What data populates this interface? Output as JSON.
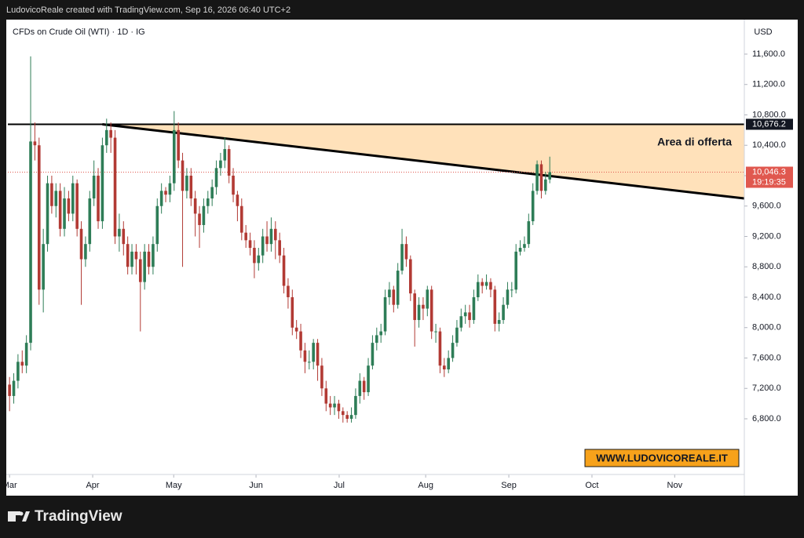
{
  "header": {
    "credit": "LudovicoReale created with TradingView.com, Sep 16, 2026 06:40 UTC+2",
    "brand": "TradingView"
  },
  "chart_data": {
    "type": "candlestick",
    "title": "CFDs on Crude Oil (WTI) · 1D · IG",
    "y_unit": "USD",
    "annotation": "Area di offerta",
    "watermark": "WWW.LUDOVICOREALE.IT",
    "up_color": "#2e7d57",
    "down_color": "#b23a34",
    "zone_color": "#ffe1ba",
    "open": [
      7250,
      7100,
      7300,
      7550,
      7500,
      7800,
      10450,
      10400,
      8500,
      9100,
      9900,
      9600,
      9800,
      9300,
      9700,
      9500,
      9900,
      9300,
      8900,
      9100,
      9700,
      10000,
      9400,
      10400,
      10600,
      10500,
      9200,
      9300,
      9100,
      8800,
      9000,
      8900,
      8600,
      9000,
      8800,
      9100,
      9600,
      9800,
      9750,
      9900,
      10600,
      10200,
      9800,
      10000,
      9700,
      9500,
      9350,
      9600,
      9700,
      9850,
      10100,
      10200,
      10350,
      10000,
      9750,
      9600,
      9250,
      9150,
      9050,
      8850,
      8950,
      9200,
      9100,
      9300,
      9150,
      8950,
      8550,
      8400,
      8000,
      7950,
      7700,
      7550,
      7550,
      7800,
      7500,
      7200,
      7000,
      6950,
      7000,
      6900,
      6850,
      6800,
      6850,
      7100,
      7300,
      7150,
      7500,
      7800,
      7900,
      7950,
      8400,
      8500,
      8300,
      8750,
      9100,
      8900,
      8450,
      8100,
      8300,
      8250,
      8500,
      7950,
      7950,
      7500,
      7450,
      7600,
      7800,
      8000,
      8150,
      8200,
      8100,
      8400,
      8600,
      8550,
      8600,
      8500,
      8050,
      8100,
      8300,
      8500,
      8500,
      9000,
      9050,
      9100,
      9400,
      9800,
      10150,
      9800,
      9950
    ],
    "high": [
      7350,
      7400,
      7650,
      7700,
      7900,
      11570,
      10700,
      10500,
      9300,
      10000,
      10000,
      9900,
      9900,
      9850,
      9800,
      10000,
      9950,
      9400,
      9200,
      9800,
      10200,
      10100,
      10500,
      10750,
      10700,
      10600,
      9500,
      9400,
      9200,
      9100,
      9100,
      9000,
      9100,
      9100,
      9200,
      9700,
      9900,
      9850,
      10000,
      10850,
      10700,
      10300,
      10100,
      10100,
      9800,
      9600,
      9700,
      9800,
      9950,
      10200,
      10300,
      10500,
      10400,
      10100,
      9800,
      9700,
      9350,
      9250,
      9150,
      9050,
      9300,
      9400,
      9450,
      9400,
      9250,
      9050,
      8650,
      8500,
      8100,
      8050,
      7800,
      7700,
      7850,
      7850,
      7600,
      7300,
      7100,
      7100,
      7050,
      6950,
      6900,
      6950,
      7200,
      7400,
      7350,
      7600,
      7900,
      8000,
      8050,
      8500,
      8600,
      8550,
      8850,
      9300,
      9200,
      8950,
      8500,
      8400,
      8400,
      8550,
      8550,
      8050,
      8000,
      7600,
      7700,
      7900,
      8100,
      8250,
      8300,
      8300,
      8500,
      8700,
      8650,
      8700,
      8650,
      8550,
      8200,
      8400,
      8600,
      8600,
      9100,
      9150,
      9200,
      9500,
      9900,
      10200,
      10200,
      10050,
      10250
    ],
    "low": [
      6900,
      7000,
      7200,
      7400,
      7400,
      7700,
      10200,
      8300,
      8200,
      9000,
      9500,
      9450,
      9200,
      9200,
      9400,
      9400,
      9200,
      8300,
      8800,
      9000,
      9600,
      9300,
      9300,
      10300,
      10300,
      9100,
      9000,
      8950,
      8700,
      8700,
      8700,
      7950,
      8500,
      8700,
      8700,
      9000,
      9500,
      9650,
      9650,
      9800,
      10100,
      8800,
      9700,
      9600,
      9200,
      9050,
      9250,
      9500,
      9600,
      9750,
      10000,
      10100,
      9900,
      9650,
      9400,
      9150,
      9050,
      8950,
      8650,
      8750,
      8850,
      9000,
      9000,
      8900,
      8850,
      8450,
      8250,
      7900,
      7850,
      7600,
      7400,
      7450,
      7450,
      7300,
      7100,
      6900,
      6850,
      6850,
      6800,
      6750,
      6750,
      6750,
      6800,
      7000,
      7050,
      7100,
      7450,
      7700,
      7800,
      7900,
      8300,
      8200,
      8250,
      8700,
      8800,
      8350,
      7750,
      8000,
      8100,
      8150,
      7850,
      7800,
      7400,
      7350,
      7400,
      7550,
      7750,
      7950,
      8050,
      8000,
      8050,
      8350,
      8450,
      8500,
      8400,
      7950,
      7950,
      8050,
      8250,
      8400,
      8450,
      8950,
      9000,
      9050,
      9350,
      9750,
      9700,
      9750,
      9900
    ],
    "close": [
      7100,
      7300,
      7550,
      7500,
      7800,
      10450,
      10400,
      8500,
      9100,
      9900,
      9600,
      9800,
      9300,
      9700,
      9500,
      9900,
      9300,
      8900,
      9100,
      9700,
      10000,
      9400,
      10400,
      10600,
      10500,
      9200,
      9300,
      9100,
      8800,
      9000,
      8900,
      8600,
      9000,
      8800,
      9100,
      9600,
      9800,
      9750,
      9900,
      10600,
      10200,
      9800,
      10000,
      9700,
      9500,
      9350,
      9600,
      9700,
      9850,
      10100,
      10200,
      10350,
      10000,
      9750,
      9600,
      9250,
      9150,
      9050,
      8850,
      8950,
      9200,
      9100,
      9300,
      9150,
      8950,
      8550,
      8400,
      8000,
      7950,
      7700,
      7550,
      7550,
      7800,
      7500,
      7200,
      7000,
      6950,
      7000,
      6900,
      6850,
      6800,
      6850,
      7100,
      7300,
      7150,
      7500,
      7800,
      7900,
      7950,
      8400,
      8500,
      8300,
      8750,
      9100,
      8900,
      8450,
      8100,
      8300,
      8250,
      8500,
      7950,
      7950,
      7500,
      7450,
      7600,
      7800,
      8000,
      8150,
      8200,
      8100,
      8400,
      8600,
      8550,
      8600,
      8500,
      8050,
      8100,
      8300,
      8500,
      8500,
      9000,
      9050,
      9100,
      9400,
      9800,
      10150,
      9800,
      9950,
      10046.3
    ],
    "xlim": [
      -0.4,
      174.1
    ],
    "xticks": [
      {
        "value": 0,
        "label": "Mar"
      },
      {
        "value": 19.7,
        "label": "Apr"
      },
      {
        "value": 38.9,
        "label": "May"
      },
      {
        "value": 58.4,
        "label": "Jun"
      },
      {
        "value": 78.1,
        "label": "Jul"
      },
      {
        "value": 98.6,
        "label": "Aug"
      },
      {
        "value": 118.3,
        "label": "Sep"
      },
      {
        "value": 138,
        "label": "Oct"
      },
      {
        "value": 157.6,
        "label": "Nov"
      }
    ],
    "ylim": [
      6067,
      12054
    ],
    "yticks": [
      {
        "value": 6800,
        "label": "6,800.0"
      },
      {
        "value": 7200,
        "label": "7,200.0"
      },
      {
        "value": 7600,
        "label": "7,600.0"
      },
      {
        "value": 8000,
        "label": "8,000.0"
      },
      {
        "value": 8400,
        "label": "8,400.0"
      },
      {
        "value": 8800,
        "label": "8,800.0"
      },
      {
        "value": 9200,
        "label": "9,200.0"
      },
      {
        "value": 9600,
        "label": "9,600.0"
      },
      {
        "value": 10000,
        "label": "10,000.0"
      },
      {
        "value": 10400,
        "label": "10,400.0"
      },
      {
        "value": 10800,
        "label": "10,800.0"
      },
      {
        "value": 11200,
        "label": "11,200.0"
      },
      {
        "value": 11600,
        "label": "11,600.0"
      }
    ],
    "resistance": {
      "value": 10676.2,
      "label": "10,676.2"
    },
    "last_price": {
      "value": 10046.3,
      "label": "10,046.3"
    },
    "countdown": "19:19:35",
    "trendline": {
      "x": [
        22,
        174.1
      ],
      "y": [
        10676.2,
        9700
      ]
    }
  }
}
